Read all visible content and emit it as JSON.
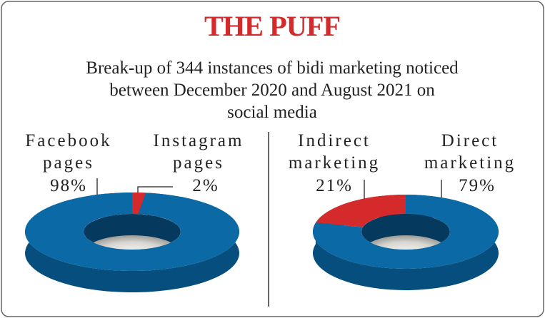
{
  "brand": "THE PUFF",
  "title_lines": [
    "Break-up of 344 instances of bidi marketing noticed",
    "between December 2020 and August 2021 on",
    "social media"
  ],
  "chart_data": [
    {
      "type": "pie",
      "donut": true,
      "categories": [
        "Facebook pages",
        "Instagram pages"
      ],
      "values": [
        98,
        2
      ],
      "value_labels": [
        "98%",
        "2%"
      ],
      "colors": [
        "#0b69a6",
        "#d42a2c"
      ]
    },
    {
      "type": "pie",
      "donut": true,
      "categories": [
        "Indirect marketing",
        "Direct marketing"
      ],
      "values": [
        21,
        79
      ],
      "value_labels": [
        "21%",
        "79%"
      ],
      "colors": [
        "#d42a2c",
        "#0b69a6"
      ]
    }
  ]
}
